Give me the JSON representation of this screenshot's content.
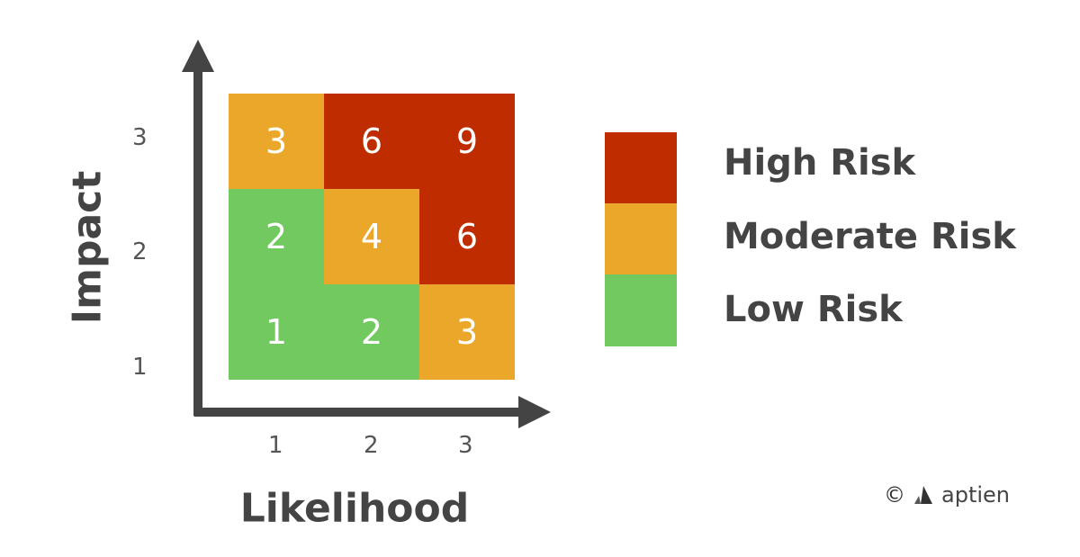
{
  "axes": {
    "y_label": "Impact",
    "x_label": "Likelihood",
    "y_ticks": [
      "3",
      "2",
      "1"
    ],
    "x_ticks": [
      "1",
      "2",
      "3"
    ]
  },
  "matrix": {
    "rows": [
      [
        "3",
        "6",
        "9"
      ],
      [
        "2",
        "4",
        "6"
      ],
      [
        "1",
        "2",
        "3"
      ]
    ],
    "levels": [
      [
        "moderate",
        "high",
        "high"
      ],
      [
        "low",
        "moderate",
        "high"
      ],
      [
        "low",
        "low",
        "moderate"
      ]
    ]
  },
  "colors": {
    "high": "#BF2C00",
    "moderate": "#EAA72A",
    "low": "#72C95F",
    "axis": "#444444"
  },
  "legend": {
    "high": "High Risk",
    "moderate": "Moderate Risk",
    "low": "Low Risk"
  },
  "footer": {
    "copyright_symbol": "©",
    "brand": "aptien"
  }
}
